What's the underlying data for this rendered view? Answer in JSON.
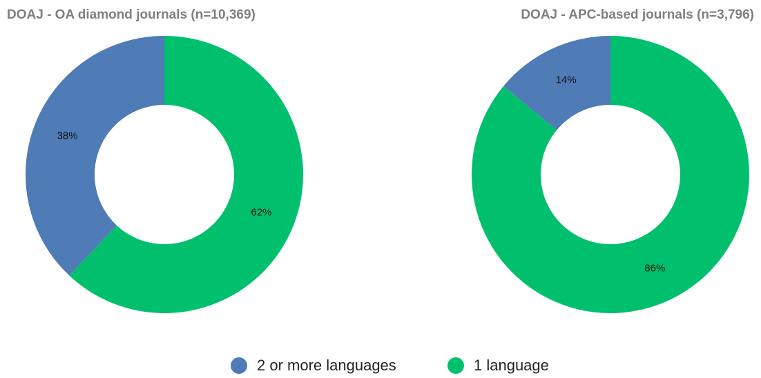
{
  "chart_data": [
    {
      "type": "donut",
      "title": "DOAJ - OA diamond journals (n=10,369)",
      "categories": [
        "2 or more languages",
        "1 language"
      ],
      "values": [
        38,
        62
      ],
      "value_labels": [
        "38%",
        "62%"
      ],
      "colors": [
        "#4f7bb6",
        "#00c06e"
      ]
    },
    {
      "type": "donut",
      "title": "DOAJ - APC-based journals (n=3,796)",
      "categories": [
        "2 or more languages",
        "1 language"
      ],
      "values": [
        14,
        86
      ],
      "value_labels": [
        "14%",
        "86%"
      ],
      "colors": [
        "#4f7bb6",
        "#00c06e"
      ]
    }
  ]
}
